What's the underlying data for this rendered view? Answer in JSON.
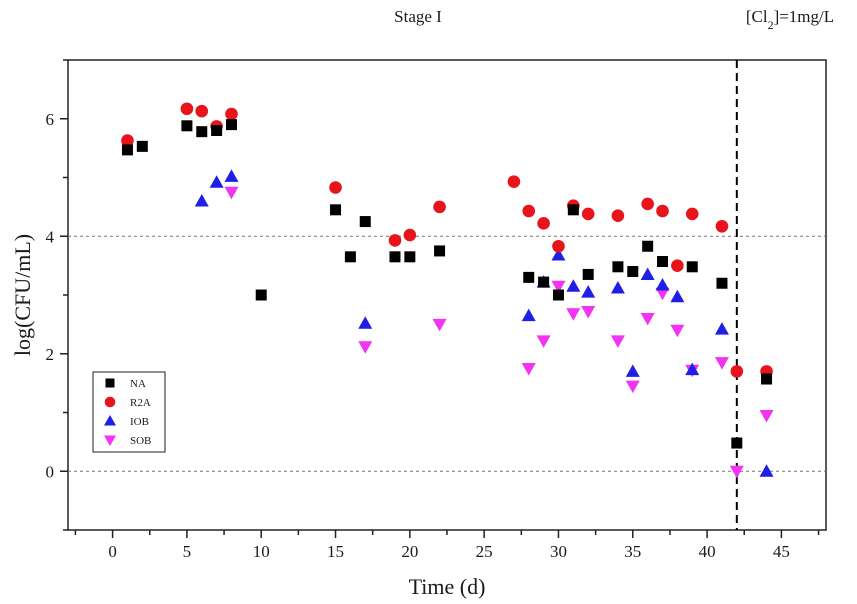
{
  "chart_data": {
    "type": "scatter",
    "title": "Stage I",
    "annotation": "[Cl2]=1mg/L",
    "xlabel": "Time (d)",
    "ylabel": "log(CFU/mL)",
    "xlim": [
      -3,
      48
    ],
    "ylim": [
      -1,
      7
    ],
    "xticks": [
      0,
      5,
      10,
      15,
      20,
      25,
      30,
      35,
      40,
      45
    ],
    "yticks": [
      0,
      2,
      4,
      6
    ],
    "reference_lines_y": [
      0,
      4
    ],
    "vertical_marker_x": 42,
    "legend_position": "bottom-left",
    "grid": false,
    "series": [
      {
        "name": "NA",
        "marker": "square",
        "color": "#000000",
        "points": [
          [
            1,
            5.47
          ],
          [
            2,
            5.53
          ],
          [
            5,
            5.88
          ],
          [
            6,
            5.78
          ],
          [
            7,
            5.8
          ],
          [
            8,
            5.9
          ],
          [
            10,
            3.0
          ],
          [
            15,
            4.45
          ],
          [
            16,
            3.65
          ],
          [
            17,
            4.25
          ],
          [
            19,
            3.65
          ],
          [
            20,
            3.65
          ],
          [
            22,
            3.75
          ],
          [
            28,
            3.3
          ],
          [
            29,
            3.22
          ],
          [
            30,
            3.0
          ],
          [
            31,
            4.45
          ],
          [
            32,
            3.35
          ],
          [
            34,
            3.48
          ],
          [
            35,
            3.4
          ],
          [
            36,
            3.83
          ],
          [
            37,
            3.57
          ],
          [
            39,
            3.48
          ],
          [
            41,
            3.2
          ],
          [
            42,
            0.48
          ],
          [
            44,
            1.57
          ]
        ]
      },
      {
        "name": "R2A",
        "marker": "circle",
        "color": "#e8141c",
        "points": [
          [
            1,
            5.63
          ],
          [
            5,
            6.17
          ],
          [
            6,
            6.13
          ],
          [
            7,
            5.87
          ],
          [
            8,
            6.08
          ],
          [
            15,
            4.83
          ],
          [
            19,
            3.93
          ],
          [
            20,
            4.02
          ],
          [
            22,
            4.5
          ],
          [
            27,
            4.93
          ],
          [
            28,
            4.43
          ],
          [
            29,
            4.22
          ],
          [
            30,
            3.83
          ],
          [
            31,
            4.52
          ],
          [
            32,
            4.38
          ],
          [
            34,
            4.35
          ],
          [
            36,
            4.55
          ],
          [
            37,
            4.43
          ],
          [
            38,
            3.5
          ],
          [
            39,
            4.38
          ],
          [
            41,
            4.17
          ],
          [
            42,
            1.7
          ],
          [
            44,
            1.7
          ]
        ]
      },
      {
        "name": "IOB",
        "marker": "triangle-up",
        "color": "#1f1fe6",
        "points": [
          [
            6,
            4.6
          ],
          [
            7,
            4.92
          ],
          [
            8,
            5.02
          ],
          [
            17,
            2.52
          ],
          [
            28,
            2.65
          ],
          [
            29,
            3.22
          ],
          [
            30,
            3.68
          ],
          [
            31,
            3.15
          ],
          [
            32,
            3.05
          ],
          [
            34,
            3.12
          ],
          [
            35,
            1.7
          ],
          [
            36,
            3.35
          ],
          [
            37,
            3.17
          ],
          [
            38,
            2.97
          ],
          [
            39,
            1.73
          ],
          [
            41,
            2.42
          ],
          [
            44,
            0.0
          ]
        ]
      },
      {
        "name": "SOB",
        "marker": "triangle-down",
        "color": "#f233f2",
        "points": [
          [
            8,
            4.75
          ],
          [
            17,
            2.12
          ],
          [
            22,
            2.5
          ],
          [
            28,
            1.75
          ],
          [
            29,
            2.22
          ],
          [
            30,
            3.15
          ],
          [
            31,
            2.68
          ],
          [
            32,
            2.72
          ],
          [
            34,
            2.22
          ],
          [
            35,
            1.45
          ],
          [
            36,
            2.6
          ],
          [
            37,
            3.03
          ],
          [
            38,
            2.4
          ],
          [
            39,
            1.72
          ],
          [
            41,
            1.85
          ],
          [
            42,
            0.0
          ],
          [
            44,
            0.95
          ]
        ]
      }
    ]
  }
}
